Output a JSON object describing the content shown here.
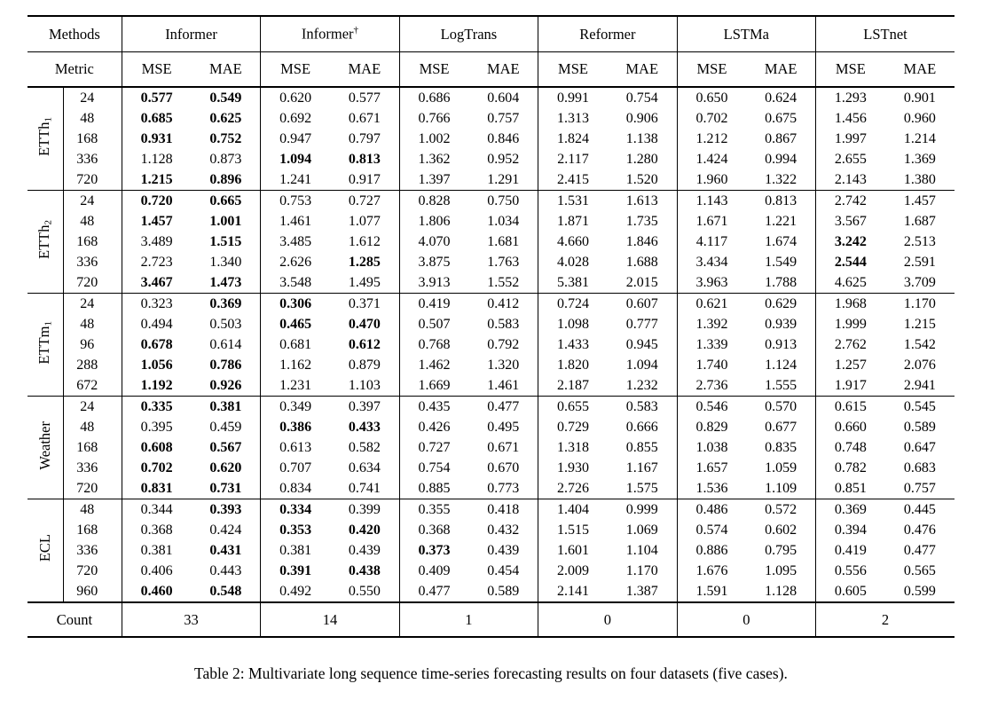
{
  "caption": "Table 2: Multivariate long sequence time-series forecasting results on four datasets (five cases).",
  "table": {
    "corner_label": "Methods",
    "metric_label": "Metric",
    "metric_cols": [
      "MSE",
      "MAE"
    ],
    "methods": [
      {
        "name": "Informer",
        "sup": ""
      },
      {
        "name": "Informer",
        "sup": "†"
      },
      {
        "name": "LogTrans",
        "sup": ""
      },
      {
        "name": "Reformer",
        "sup": ""
      },
      {
        "name": "LSTMa",
        "sup": ""
      },
      {
        "name": "LSTnet",
        "sup": ""
      }
    ],
    "groups": [
      {
        "dataset": "ETTh",
        "sub": "1",
        "rows": [
          {
            "horizon": "24",
            "cells": [
              {
                "v": "0.577",
                "b": true
              },
              {
                "v": "0.549",
                "b": true
              },
              "0.620",
              "0.577",
              "0.686",
              "0.604",
              "0.991",
              "0.754",
              "0.650",
              "0.624",
              "1.293",
              "0.901"
            ]
          },
          {
            "horizon": "48",
            "cells": [
              {
                "v": "0.685",
                "b": true
              },
              {
                "v": "0.625",
                "b": true
              },
              "0.692",
              "0.671",
              "0.766",
              "0.757",
              "1.313",
              "0.906",
              "0.702",
              "0.675",
              "1.456",
              "0.960"
            ]
          },
          {
            "horizon": "168",
            "cells": [
              {
                "v": "0.931",
                "b": true
              },
              {
                "v": "0.752",
                "b": true
              },
              "0.947",
              "0.797",
              "1.002",
              "0.846",
              "1.824",
              "1.138",
              "1.212",
              "0.867",
              "1.997",
              "1.214"
            ]
          },
          {
            "horizon": "336",
            "cells": [
              "1.128",
              "0.873",
              {
                "v": "1.094",
                "b": true
              },
              {
                "v": "0.813",
                "b": true
              },
              "1.362",
              "0.952",
              "2.117",
              "1.280",
              "1.424",
              "0.994",
              "2.655",
              "1.369"
            ]
          },
          {
            "horizon": "720",
            "cells": [
              {
                "v": "1.215",
                "b": true
              },
              {
                "v": "0.896",
                "b": true
              },
              "1.241",
              "0.917",
              "1.397",
              "1.291",
              "2.415",
              "1.520",
              "1.960",
              "1.322",
              "2.143",
              "1.380"
            ]
          }
        ]
      },
      {
        "dataset": "ETTh",
        "sub": "2",
        "rows": [
          {
            "horizon": "24",
            "cells": [
              {
                "v": "0.720",
                "b": true
              },
              {
                "v": "0.665",
                "b": true
              },
              "0.753",
              "0.727",
              "0.828",
              "0.750",
              "1.531",
              "1.613",
              "1.143",
              "0.813",
              "2.742",
              "1.457"
            ]
          },
          {
            "horizon": "48",
            "cells": [
              {
                "v": "1.457",
                "b": true
              },
              {
                "v": "1.001",
                "b": true
              },
              "1.461",
              "1.077",
              "1.806",
              "1.034",
              "1.871",
              "1.735",
              "1.671",
              "1.221",
              "3.567",
              "1.687"
            ]
          },
          {
            "horizon": "168",
            "cells": [
              "3.489",
              {
                "v": "1.515",
                "b": true
              },
              "3.485",
              "1.612",
              "4.070",
              "1.681",
              "4.660",
              "1.846",
              "4.117",
              "1.674",
              {
                "v": "3.242",
                "b": true
              },
              "2.513"
            ]
          },
          {
            "horizon": "336",
            "cells": [
              "2.723",
              "1.340",
              "2.626",
              {
                "v": "1.285",
                "b": true
              },
              "3.875",
              "1.763",
              "4.028",
              "1.688",
              "3.434",
              "1.549",
              {
                "v": "2.544",
                "b": true
              },
              "2.591"
            ]
          },
          {
            "horizon": "720",
            "cells": [
              {
                "v": "3.467",
                "b": true
              },
              {
                "v": "1.473",
                "b": true
              },
              "3.548",
              "1.495",
              "3.913",
              "1.552",
              "5.381",
              "2.015",
              "3.963",
              "1.788",
              "4.625",
              "3.709"
            ]
          }
        ]
      },
      {
        "dataset": "ETTm",
        "sub": "1",
        "rows": [
          {
            "horizon": "24",
            "cells": [
              "0.323",
              {
                "v": "0.369",
                "b": true
              },
              {
                "v": "0.306",
                "b": true
              },
              "0.371",
              "0.419",
              "0.412",
              "0.724",
              "0.607",
              "0.621",
              "0.629",
              "1.968",
              "1.170"
            ]
          },
          {
            "horizon": "48",
            "cells": [
              "0.494",
              "0.503",
              {
                "v": "0.465",
                "b": true
              },
              {
                "v": "0.470",
                "b": true
              },
              "0.507",
              "0.583",
              "1.098",
              "0.777",
              "1.392",
              "0.939",
              "1.999",
              "1.215"
            ]
          },
          {
            "horizon": "96",
            "cells": [
              {
                "v": "0.678",
                "b": true
              },
              "0.614",
              "0.681",
              {
                "v": "0.612",
                "b": true
              },
              "0.768",
              "0.792",
              "1.433",
              "0.945",
              "1.339",
              "0.913",
              "2.762",
              "1.542"
            ]
          },
          {
            "horizon": "288",
            "cells": [
              {
                "v": "1.056",
                "b": true
              },
              {
                "v": "0.786",
                "b": true
              },
              "1.162",
              "0.879",
              "1.462",
              "1.320",
              "1.820",
              "1.094",
              "1.740",
              "1.124",
              "1.257",
              "2.076"
            ]
          },
          {
            "horizon": "672",
            "cells": [
              {
                "v": "1.192",
                "b": true
              },
              {
                "v": "0.926",
                "b": true
              },
              "1.231",
              "1.103",
              "1.669",
              "1.461",
              "2.187",
              "1.232",
              "2.736",
              "1.555",
              "1.917",
              "2.941"
            ]
          }
        ]
      },
      {
        "dataset": "Weather",
        "sub": "",
        "rows": [
          {
            "horizon": "24",
            "cells": [
              {
                "v": "0.335",
                "b": true
              },
              {
                "v": "0.381",
                "b": true
              },
              "0.349",
              "0.397",
              "0.435",
              "0.477",
              "0.655",
              "0.583",
              "0.546",
              "0.570",
              "0.615",
              "0.545"
            ]
          },
          {
            "horizon": "48",
            "cells": [
              "0.395",
              "0.459",
              {
                "v": "0.386",
                "b": true
              },
              {
                "v": "0.433",
                "b": true
              },
              "0.426",
              "0.495",
              "0.729",
              "0.666",
              "0.829",
              "0.677",
              "0.660",
              "0.589"
            ]
          },
          {
            "horizon": "168",
            "cells": [
              {
                "v": "0.608",
                "b": true
              },
              {
                "v": "0.567",
                "b": true
              },
              "0.613",
              "0.582",
              "0.727",
              "0.671",
              "1.318",
              "0.855",
              "1.038",
              "0.835",
              "0.748",
              "0.647"
            ]
          },
          {
            "horizon": "336",
            "cells": [
              {
                "v": "0.702",
                "b": true
              },
              {
                "v": "0.620",
                "b": true
              },
              "0.707",
              "0.634",
              "0.754",
              "0.670",
              "1.930",
              "1.167",
              "1.657",
              "1.059",
              "0.782",
              "0.683"
            ]
          },
          {
            "horizon": "720",
            "cells": [
              {
                "v": "0.831",
                "b": true
              },
              {
                "v": "0.731",
                "b": true
              },
              "0.834",
              "0.741",
              "0.885",
              "0.773",
              "2.726",
              "1.575",
              "1.536",
              "1.109",
              "0.851",
              "0.757"
            ]
          }
        ]
      },
      {
        "dataset": "ECL",
        "sub": "",
        "rows": [
          {
            "horizon": "48",
            "cells": [
              "0.344",
              {
                "v": "0.393",
                "b": true
              },
              {
                "v": "0.334",
                "b": true
              },
              "0.399",
              "0.355",
              "0.418",
              "1.404",
              "0.999",
              "0.486",
              "0.572",
              "0.369",
              "0.445"
            ]
          },
          {
            "horizon": "168",
            "cells": [
              "0.368",
              "0.424",
              {
                "v": "0.353",
                "b": true
              },
              {
                "v": "0.420",
                "b": true
              },
              "0.368",
              "0.432",
              "1.515",
              "1.069",
              "0.574",
              "0.602",
              "0.394",
              "0.476"
            ]
          },
          {
            "horizon": "336",
            "cells": [
              "0.381",
              {
                "v": "0.431",
                "b": true
              },
              "0.381",
              "0.439",
              {
                "v": "0.373",
                "b": true
              },
              "0.439",
              "1.601",
              "1.104",
              "0.886",
              "0.795",
              "0.419",
              "0.477"
            ]
          },
          {
            "horizon": "720",
            "cells": [
              "0.406",
              "0.443",
              {
                "v": "0.391",
                "b": true
              },
              {
                "v": "0.438",
                "b": true
              },
              "0.409",
              "0.454",
              "2.009",
              "1.170",
              "1.676",
              "1.095",
              "0.556",
              "0.565"
            ]
          },
          {
            "horizon": "960",
            "cells": [
              {
                "v": "0.460",
                "b": true
              },
              {
                "v": "0.548",
                "b": true
              },
              "0.492",
              "0.550",
              "0.477",
              "0.589",
              "2.141",
              "1.387",
              "1.591",
              "1.128",
              "0.605",
              "0.599"
            ]
          }
        ]
      }
    ],
    "count_label": "Count",
    "counts": [
      "33",
      "14",
      "1",
      "0",
      "0",
      "2"
    ]
  }
}
